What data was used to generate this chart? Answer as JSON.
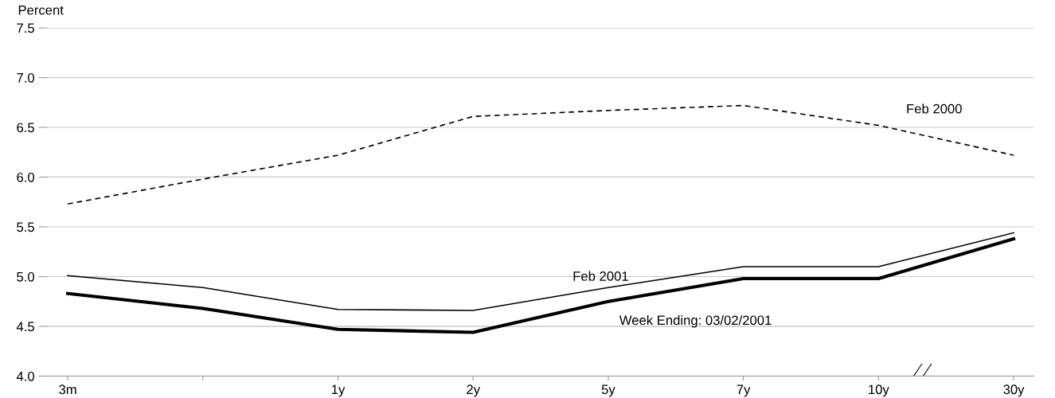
{
  "chart_data": {
    "type": "line",
    "ylabel": "Percent",
    "categories": [
      "3m",
      null,
      "1y",
      "2y",
      "5y",
      "7y",
      "10y",
      "30y"
    ],
    "series": [
      {
        "name": "Feb 2000",
        "color": "#000000",
        "line_style": "dashed",
        "values": [
          5.73,
          5.98,
          6.22,
          6.61,
          6.67,
          6.72,
          6.52,
          6.22
        ]
      },
      {
        "name": "Feb 2001",
        "color": "#000000",
        "line_style": "solid",
        "values": [
          5.01,
          4.89,
          4.67,
          4.66,
          4.89,
          5.1,
          5.1,
          5.44
        ]
      },
      {
        "name": "Week Ending: 03/02/2001",
        "color": "#000000",
        "line_style": "solid",
        "values": [
          4.83,
          4.68,
          4.47,
          4.44,
          4.75,
          4.98,
          4.98,
          5.38
        ]
      }
    ],
    "ylim": [
      4.0,
      7.5
    ],
    "yticks": [
      {
        "value": 4.0,
        "label": "4.0"
      },
      {
        "value": 4.5,
        "label": "4.5"
      },
      {
        "value": 5.0,
        "label": "5.0"
      },
      {
        "value": 5.5,
        "label": "5.5"
      },
      {
        "value": 6.0,
        "label": "6.0"
      },
      {
        "value": 6.5,
        "label": "6.5"
      },
      {
        "value": 7.0,
        "label": "7.0"
      },
      {
        "value": 7.5,
        "label": "7.5"
      }
    ],
    "grid": "y",
    "legend": false,
    "marker": "none"
  }
}
